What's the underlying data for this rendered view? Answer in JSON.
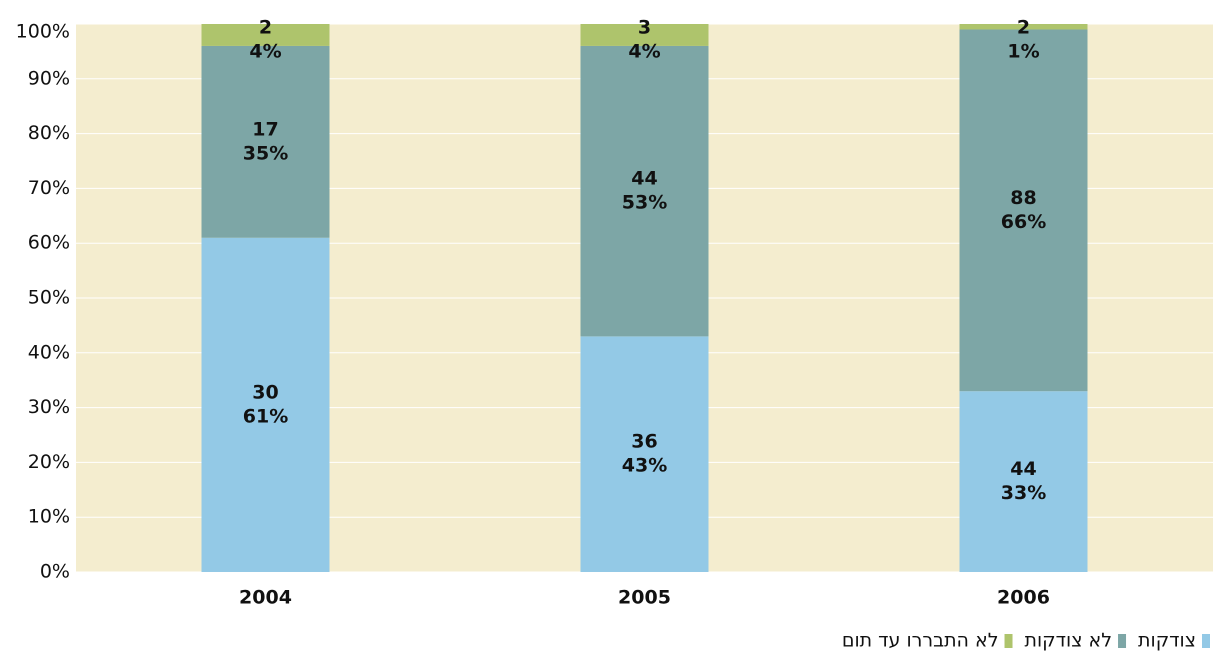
{
  "chart_data": {
    "type": "bar",
    "stacked": true,
    "categories": [
      "2004",
      "2005",
      "2006"
    ],
    "series": [
      {
        "name": "צודקות",
        "color": "#93c9e6",
        "values": [
          61,
          43,
          33
        ],
        "value_labels": [
          "61%",
          "43%",
          "33%"
        ],
        "counts": [
          30,
          36,
          44
        ]
      },
      {
        "name": "לא צודקות",
        "color": "#7da6a6",
        "values": [
          35,
          53,
          66
        ],
        "value_labels": [
          "35%",
          "53%",
          "66%"
        ],
        "counts": [
          17,
          44,
          88
        ]
      },
      {
        "name": "לא התבררו עד תום",
        "color": "#aec46c",
        "values": [
          4,
          4,
          1
        ],
        "value_labels": [
          "4%",
          "4%",
          "1%"
        ],
        "counts": [
          2,
          3,
          2
        ]
      }
    ],
    "ylim": [
      0,
      100
    ],
    "yticks": [
      {
        "value": 0,
        "label": "0%"
      },
      {
        "value": 10,
        "label": "10%"
      },
      {
        "value": 20,
        "label": "20%"
      },
      {
        "value": 30,
        "label": "30%"
      },
      {
        "value": 40,
        "label": "40%"
      },
      {
        "value": 50,
        "label": "50%"
      },
      {
        "value": 60,
        "label": "60%"
      },
      {
        "value": 70,
        "label": "70%"
      },
      {
        "value": 80,
        "label": "80%"
      },
      {
        "value": 90,
        "label": "90%"
      },
      {
        "value": 100,
        "label": "100%"
      }
    ],
    "grid": true,
    "legend": "bottom-right",
    "background": "#f4edcf"
  }
}
